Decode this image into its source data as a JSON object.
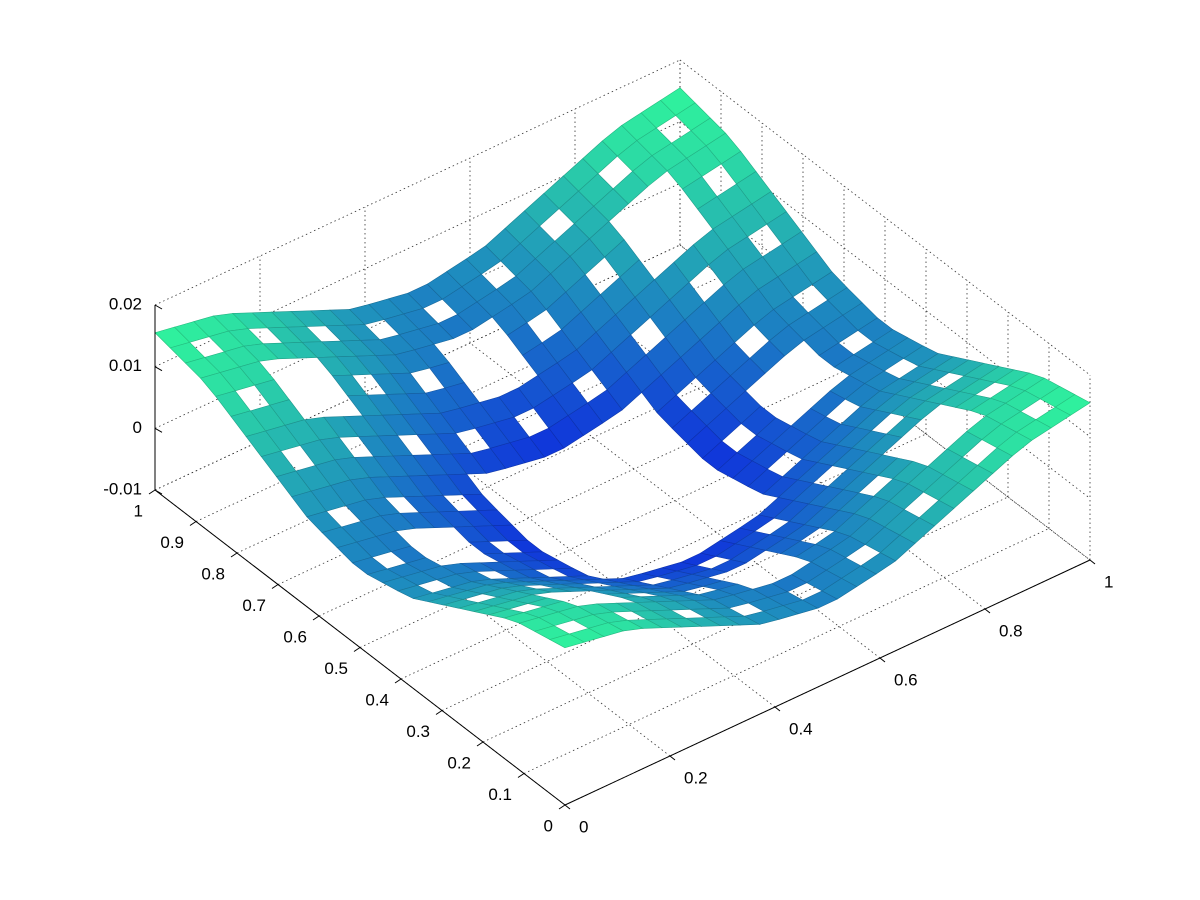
{
  "chart_data": {
    "type": "surface",
    "x": [
      0,
      0.125,
      0.25,
      0.375,
      0.5,
      0.625,
      0.75,
      0.875,
      1
    ],
    "y": [
      0,
      0.125,
      0.25,
      0.375,
      0.5,
      0.625,
      0.75,
      0.875,
      1
    ],
    "z": [
      [
        0.0155,
        0.0136,
        0.009,
        0.0044,
        0.0025,
        0.0044,
        0.009,
        0.0136,
        0.0155
      ],
      [
        0.0136,
        0.0117,
        0.0071,
        0.0025,
        0.0006,
        0.0025,
        0.0071,
        0.0117,
        0.0136
      ],
      [
        0.009,
        0.0071,
        0.0025,
        -0.0021,
        -0.004,
        -0.0021,
        0.0025,
        0.0071,
        0.009
      ],
      [
        0.0044,
        0.0025,
        -0.0021,
        -0.0067,
        -0.0086,
        -0.0067,
        -0.0021,
        0.0025,
        0.0044
      ],
      [
        0.0025,
        0.0006,
        -0.004,
        -0.0086,
        -0.0105,
        -0.0086,
        -0.004,
        0.0006,
        0.0025
      ],
      [
        0.0044,
        0.0025,
        -0.0021,
        -0.0067,
        -0.0086,
        -0.0067,
        -0.0021,
        0.0025,
        0.0044
      ],
      [
        0.009,
        0.0071,
        0.0025,
        -0.0021,
        -0.004,
        -0.0021,
        0.0025,
        0.0071,
        0.009
      ],
      [
        0.0136,
        0.0117,
        0.0071,
        0.0025,
        0.0006,
        0.0025,
        0.0071,
        0.0117,
        0.0136
      ],
      [
        0.0155,
        0.0136,
        0.009,
        0.0044,
        0.0025,
        0.0044,
        0.009,
        0.0136,
        0.0155
      ]
    ],
    "xlim": [
      0,
      1
    ],
    "ylim": [
      0,
      1
    ],
    "zlim": [
      -0.01,
      0.02
    ],
    "xticks": [
      0,
      0.2,
      0.4,
      0.6,
      0.8,
      1
    ],
    "yticks": [
      0,
      0.1,
      0.2,
      0.3,
      0.4,
      0.5,
      0.6,
      0.7,
      0.8,
      0.9,
      1
    ],
    "zticks": [
      -0.01,
      0,
      0.01,
      0.02
    ],
    "grid": true,
    "colormap": [
      "#0a14e6",
      "#30f59c"
    ]
  }
}
